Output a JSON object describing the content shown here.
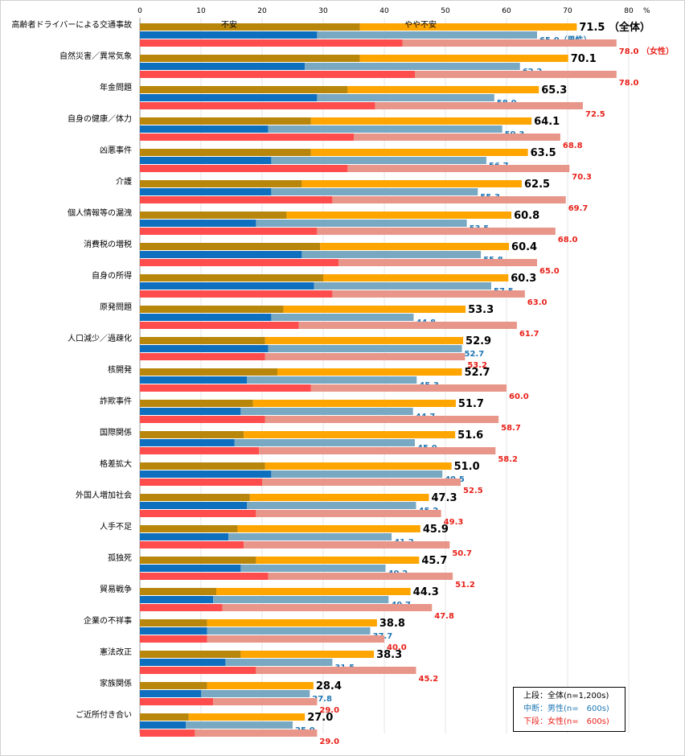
{
  "chart_data": {
    "type": "bar",
    "orientation": "horizontal",
    "unit": "%",
    "xlim": [
      0,
      80
    ],
    "xticks": [
      0,
      10,
      20,
      30,
      40,
      50,
      60,
      70,
      80
    ],
    "categories": [
      "高齢者ドライバーによる交通事故",
      "自然災害／異常気象",
      "年金問題",
      "自身の健康／体力",
      "凶悪事件",
      "介護",
      "個人情報等の漏洩",
      "消費税の増税",
      "自身の所得",
      "原発問題",
      "人口減少／過疎化",
      "核開発",
      "詐欺事件",
      "国際関係",
      "格差拡大",
      "外国人増加社会",
      "人手不足",
      "孤独死",
      "貿易戦争",
      "企業の不祥事",
      "憲法改正",
      "家族関係",
      "ご近所付き合い"
    ],
    "segment_labels": {
      "anxious": "不安",
      "somewhat": "やや不安"
    },
    "series": [
      {
        "name": "全体",
        "total": [
          71.5,
          70.1,
          65.3,
          64.1,
          63.5,
          62.5,
          60.8,
          60.4,
          60.3,
          53.3,
          52.9,
          52.7,
          51.7,
          51.6,
          51.0,
          47.3,
          45.9,
          45.7,
          44.3,
          38.8,
          38.3,
          28.4,
          27.0
        ],
        "anxious": [
          36,
          36,
          34,
          28,
          28,
          26.5,
          24,
          29.5,
          30,
          23.5,
          20.5,
          22.5,
          18.5,
          17,
          20.5,
          18,
          16,
          19,
          12.5,
          11,
          16.5,
          11,
          8
        ]
      },
      {
        "name": "男性",
        "total": [
          65.0,
          62.2,
          58.0,
          59.3,
          56.7,
          55.3,
          53.5,
          55.8,
          57.5,
          44.8,
          52.7,
          45.3,
          44.7,
          45.0,
          49.5,
          45.2,
          41.2,
          40.2,
          40.7,
          37.7,
          31.5,
          27.8,
          25.0
        ],
        "anxious": [
          29,
          27,
          29,
          21,
          21.5,
          21.5,
          19,
          26.5,
          28.5,
          21.5,
          21,
          17.5,
          16.5,
          15.5,
          21.5,
          17.5,
          14.5,
          16.5,
          12,
          11,
          14,
          10,
          7.5
        ]
      },
      {
        "name": "女性",
        "total": [
          78.0,
          78.0,
          72.5,
          68.8,
          70.3,
          69.7,
          68.0,
          65.0,
          63.0,
          61.7,
          53.2,
          60.0,
          58.7,
          58.2,
          52.5,
          49.3,
          50.7,
          51.2,
          47.8,
          40.0,
          45.2,
          29.0,
          29.0
        ],
        "anxious": [
          43,
          45,
          38.5,
          35,
          34,
          31.5,
          29,
          32.5,
          31.5,
          26,
          20.5,
          28,
          20.5,
          19.5,
          20,
          19,
          17,
          21,
          13.5,
          11,
          19,
          12,
          9
        ]
      }
    ],
    "annotations": {
      "male_tag": "（男性）",
      "female_tag": "（女性）",
      "all_tag": "（全体）"
    },
    "colors": {
      "all_dark": "#b8860b",
      "all_light": "#ffa500",
      "male_dark": "#0f6fbf",
      "male_light": "#79a8c2",
      "female_dark": "#ff4d4d",
      "female_light": "#e8968a",
      "male_text": "#1f77b4",
      "female_text": "#e8221b"
    }
  },
  "legend": {
    "line1": "上段：全体(n=1,200s)",
    "line2": "中断：男性(n=　600s)",
    "line3": "下段：女性(n=　600s)"
  },
  "axis_unit": "%"
}
